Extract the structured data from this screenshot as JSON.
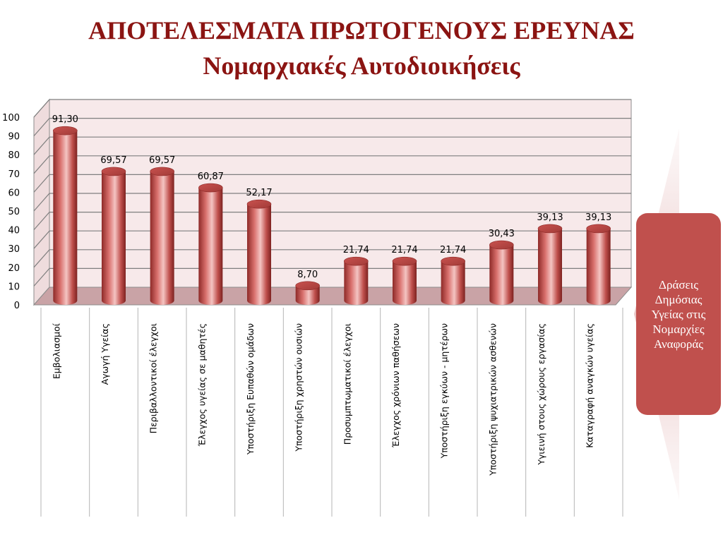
{
  "slide": {
    "title": "ΑΠΟΤΕΛΕΣΜΑΤΑ ΠΡΩΤΟΓΕΝΟΥΣ ΕΡΕΥΝΑΣ",
    "subtitle": "Νομαρχιακές Αυτοδιοικήσεις",
    "side_label": "Δράσεις Δημόσιας Υγείας στις Νομαρχίες Αναφοράς"
  },
  "colors": {
    "title": "#8b1412",
    "bar": "#c0504d",
    "side_box": "#c0504d",
    "plot_bg": "#f7e9ea",
    "floor": "#c9a3a6"
  },
  "chart_data": {
    "type": "bar",
    "title": "",
    "xlabel": "",
    "ylabel": "",
    "ylim": [
      0,
      100
    ],
    "yticks": [
      0,
      10,
      20,
      30,
      40,
      50,
      60,
      70,
      80,
      90,
      100
    ],
    "grid": true,
    "categories": [
      "Εμβολιασμοί",
      "Αγωγή Υγείας",
      "Περιβαλλοντικοί έλεγχοι",
      "Έλεγχος υγείας σε μαθητές",
      "Υποστήριξη Ευπαθών ομάδων",
      "Υποστήριξη χρηστών ουσιών",
      "Προσυμπτωματικοί έλεγχοι",
      "Έλεγχος χρόνιων παθήσεων",
      "Υποστήριξη εγκύων - μητέρων",
      "Υποστήριξη ψυχιατρικών ασθενών",
      "Υγιεινή στους χώρους εργασίας",
      "Καταγραφή αναγκών υγείας"
    ],
    "values": [
      91.3,
      69.57,
      69.57,
      60.87,
      52.17,
      8.7,
      21.74,
      21.74,
      21.74,
      30.43,
      39.13,
      39.13
    ],
    "data_labels": [
      "91,30",
      "69,57",
      "69,57",
      "60,87",
      "52,17",
      "8,70",
      "21,74",
      "21,74",
      "21,74",
      "30,43",
      "39,13",
      "39,13"
    ]
  }
}
